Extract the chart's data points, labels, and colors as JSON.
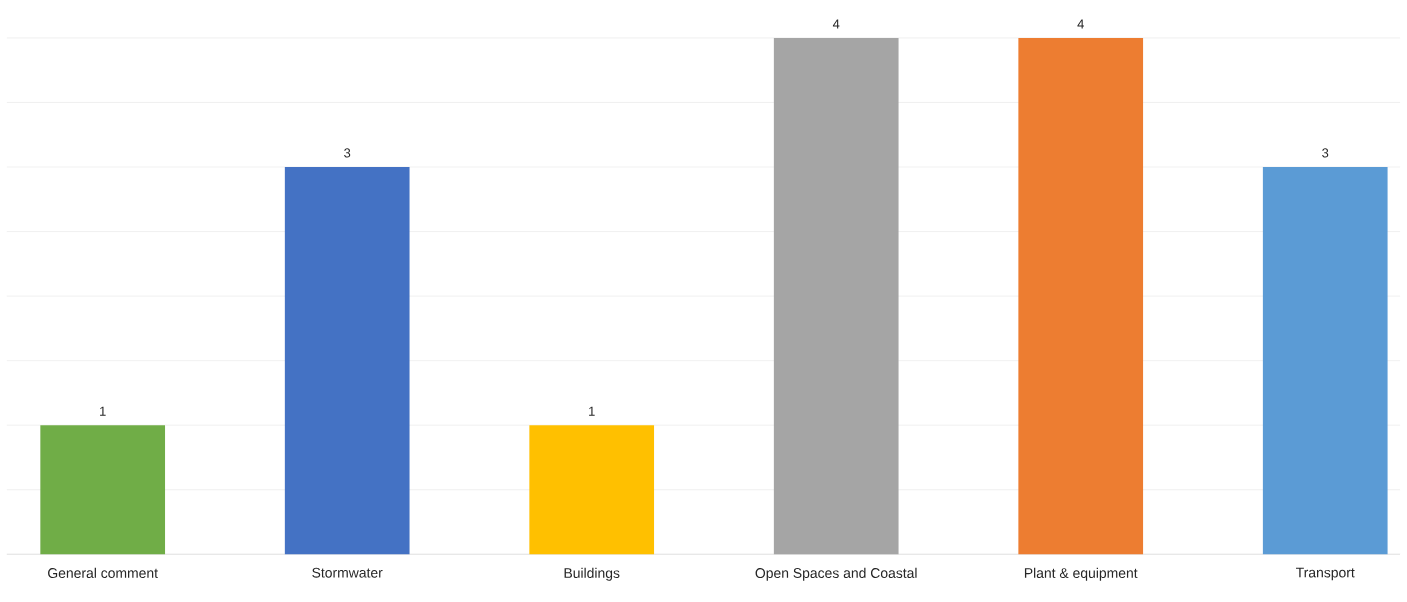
{
  "chart_data": {
    "type": "bar",
    "categories": [
      "General comment",
      "Stormwater",
      "Buildings",
      "Open Spaces and Coastal",
      "Plant & equipment",
      "Transport"
    ],
    "values": [
      1,
      3,
      1,
      4,
      4,
      3
    ],
    "colors": [
      "#70ad47",
      "#4472c4",
      "#ffc000",
      "#a5a5a5",
      "#ed7d31",
      "#5b9bd5"
    ],
    "ylim": [
      0,
      4
    ],
    "grid": "y",
    "tick_labels": "x",
    "data_labels": true
  }
}
